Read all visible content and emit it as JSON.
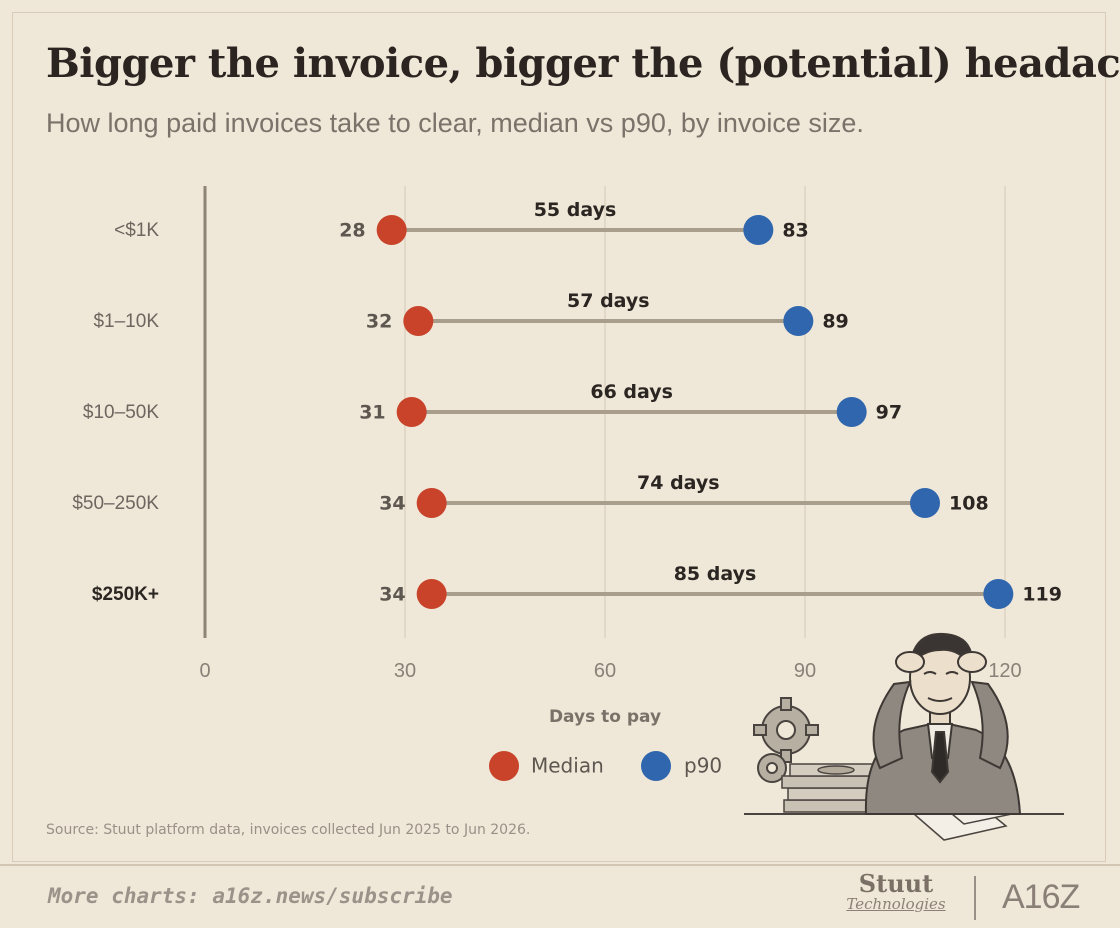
{
  "header": {
    "title": "Bigger the invoice, bigger the (potential) headache",
    "subtitle": "How long paid invoices take to clear, median vs p90, by invoice size."
  },
  "chart_data": {
    "type": "dumbbell",
    "categories": [
      "<$1K",
      "$1–10K",
      "$10–50K",
      "$50–250K",
      "$250K+"
    ],
    "highlighted_category": "$250K+",
    "series": [
      {
        "name": "Median",
        "color": "#c8432a",
        "values": [
          28,
          32,
          31,
          34,
          34
        ]
      },
      {
        "name": "p90",
        "color": "#2f66ad",
        "values": [
          83,
          89,
          97,
          108,
          119
        ]
      }
    ],
    "gap_labels": [
      "55 days",
      "57 days",
      "66 days",
      "74 days",
      "85 days"
    ],
    "xlabel": "Days to pay",
    "xlim": [
      0,
      120
    ],
    "xticks": [
      0,
      30,
      60,
      90,
      120
    ],
    "grid": true,
    "legend_position": "bottom-center"
  },
  "colors": {
    "background": "#efe7d8",
    "connector": "#a99d8c",
    "grid": "#ddd3c2"
  },
  "source": "Source: Stuut platform data, invoices collected Jun 2025 to Jun 2026.",
  "footer": {
    "link_text": "More charts: a16z.news/subscribe",
    "brand_primary": "Stuut",
    "brand_secondary": "Technologies",
    "brand_partner": "A16Z"
  },
  "illustration": {
    "icon": "stressed-businessman-with-gears-and-money-illustration"
  }
}
